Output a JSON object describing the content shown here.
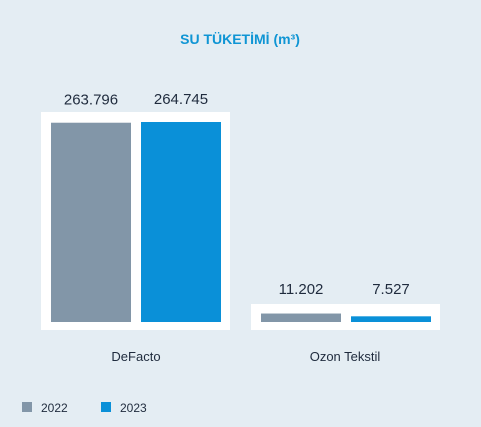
{
  "colors": {
    "background": "#e4edf3",
    "panel": "#ffffff",
    "title": "#0f95d4",
    "text": "#1f2b3d",
    "series_2022": "#8296a8",
    "series_2023": "#0a90d8"
  },
  "chart_data": {
    "type": "bar",
    "title": "SU TÜKETİMİ (m³)",
    "categories": [
      "DeFacto",
      "Ozon Tekstil"
    ],
    "series": [
      {
        "name": "2022",
        "values": [
          263796,
          11202
        ],
        "labels": [
          "263.796",
          "11.202"
        ]
      },
      {
        "name": "2023",
        "values": [
          264745,
          7527
        ],
        "labels": [
          "264.745",
          "7.527"
        ]
      }
    ],
    "ylim": [
      0,
      264745
    ],
    "grid": false,
    "legend": "bottom-left"
  }
}
